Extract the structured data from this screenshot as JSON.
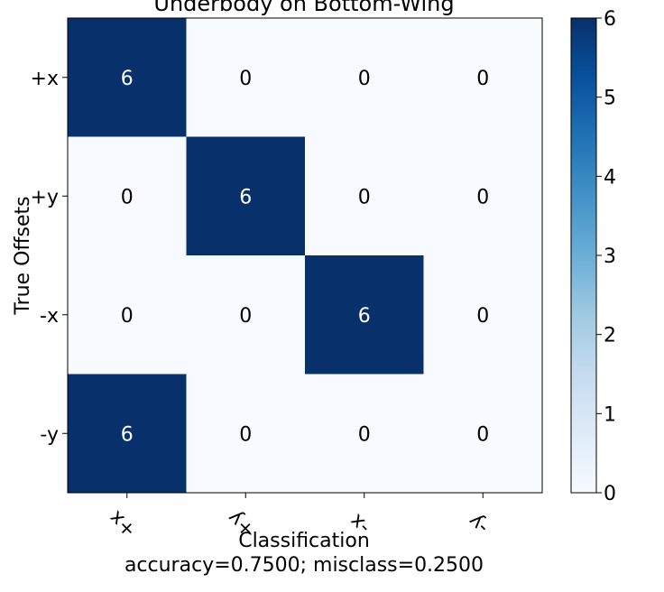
{
  "chart_data": {
    "type": "heatmap",
    "title": "Underbody on Bottom-Wing",
    "xlabel": "Classification",
    "ylabel": "True Offsets",
    "footer": "accuracy=0.7500; misclass=0.2500",
    "row_labels": [
      "+x",
      "+y",
      "-x",
      "-y"
    ],
    "col_labels": [
      "+x",
      "+y",
      "-x",
      "-y"
    ],
    "values": [
      [
        6,
        0,
        0,
        0
      ],
      [
        0,
        6,
        0,
        0
      ],
      [
        0,
        0,
        6,
        0
      ],
      [
        6,
        0,
        0,
        0
      ]
    ],
    "colorbar": {
      "min": 0,
      "max": 6,
      "ticks": [
        "0",
        "1",
        "2",
        "3",
        "4",
        "5",
        "6"
      ]
    },
    "colormap": "Blues",
    "colors": {
      "low": "#f7fbff",
      "high": "#08306b",
      "text_on_dark": "#ffffff",
      "text_on_light": "#000000"
    }
  }
}
